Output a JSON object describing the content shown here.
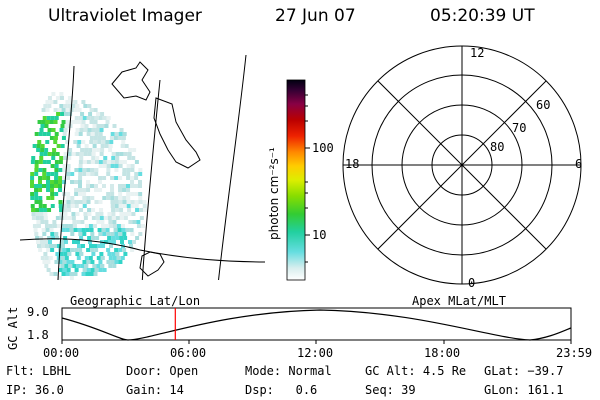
{
  "header": {
    "instrument": "Ultraviolet Imager",
    "date": "27 Jun 07",
    "time": "05:20:39 UT"
  },
  "colorbar": {
    "label": "photon cm⁻²s⁻¹",
    "ticks": [
      "100",
      "10"
    ]
  },
  "polar_plot": {
    "mlt_labels": {
      "top": "12",
      "left": "18",
      "right": "6",
      "bottom": "0"
    },
    "lat_labels": [
      "60",
      "70",
      "80"
    ]
  },
  "map_label": "Geographic Lat/Lon",
  "polar_label": "Apex MLat/MLT",
  "altitude_plot": {
    "ylabel": "GC Alt",
    "yticks": [
      "9.0",
      "1.8"
    ],
    "xticks": [
      "00:00",
      "06:00",
      "12:00",
      "18:00",
      "23:59"
    ],
    "current_time_fraction": 0.2226
  },
  "footer": {
    "row1": [
      {
        "label": "Flt:",
        "value": "LBHL"
      },
      {
        "label": "Door:",
        "value": "Open"
      },
      {
        "label": "Mode:",
        "value": "Normal"
      },
      {
        "label": "GC Alt:",
        "value": "4.5 Re"
      },
      {
        "label": "GLat:",
        "value": "−39.7"
      }
    ],
    "row2": [
      {
        "label": "IP:",
        "value": "36.0"
      },
      {
        "label": "Gain:",
        "value": "14"
      },
      {
        "label": "Dsp:",
        "value": "0.6"
      },
      {
        "label": "Seq:",
        "value": "39"
      },
      {
        "label": "GLon:",
        "value": "161.1"
      }
    ]
  },
  "colors": {
    "current_time_marker": "#ff0000"
  }
}
